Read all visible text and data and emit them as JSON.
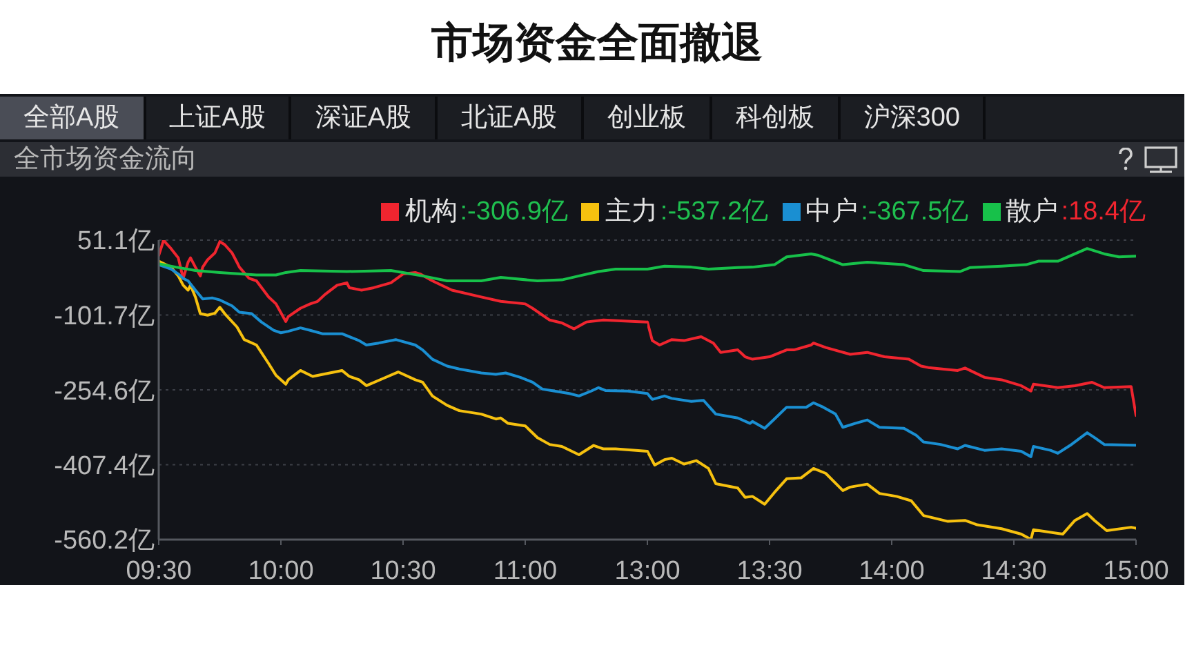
{
  "chart_data": [
    {
      "type": "line",
      "title": "市场资金全面撤退",
      "subtitle": "全市场资金流向",
      "annotations": [
        "全部A股",
        "上证A股",
        "深证A股",
        "北证A股",
        "创业板",
        "科创板",
        "沪深300"
      ],
      "xlim": [
        9.5,
        11.5
      ],
      "xticks": [
        {
          "value": 9.5,
          "label": "09:30"
        },
        {
          "value": 10,
          "label": "10:00"
        },
        {
          "value": 10.5,
          "label": "10:30"
        },
        {
          "value": 11,
          "label": "11:00"
        }
      ],
      "ylim": [
        -560.2,
        51.1
      ],
      "yticks": [
        {
          "value": 51.1,
          "label": "51.1亿"
        },
        {
          "value": -101.7,
          "label": "-101.7亿"
        },
        {
          "value": -254.6,
          "label": "-254.6亿"
        },
        {
          "value": -407.4,
          "label": "-407.4亿"
        },
        {
          "value": -560.2,
          "label": "-560.2亿"
        }
      ],
      "grid": "y",
      "legend": "top right",
      "series": [
        {
          "name": "机构:-306.9亿",
          "color": "#f0252f",
          "x": [
            9.5,
            9.52,
            9.53,
            9.55,
            9.58,
            9.6,
            9.62,
            9.63,
            9.65,
            9.67,
            9.68,
            9.7,
            9.73,
            9.75,
            9.77,
            9.8,
            9.82,
            9.83,
            9.87,
            9.9,
            9.95,
            9.98,
            10.02,
            10.03,
            10.08,
            10.12,
            10.15,
            10.18,
            10.23,
            10.27,
            10.28,
            10.33,
            10.38,
            10.45,
            10.5,
            10.55,
            10.57,
            10.62,
            10.7,
            10.82,
            10.9,
            11,
            11.03,
            11.1,
            11.15,
            11.2,
            11.25,
            11.32,
            11.45,
            11.5
          ],
          "values": [
            20,
            51,
            45,
            34,
            15,
            -27,
            6,
            15,
            -4,
            -22,
            -4,
            11,
            25,
            48,
            42,
            25,
            6,
            -4,
            -27,
            -32,
            -65,
            -79,
            -115,
            -105,
            -88,
            -79,
            -74,
            -60,
            -41,
            -36,
            -46,
            -51,
            -46,
            -36,
            -18,
            -15,
            -18,
            -32,
            -51,
            -65,
            -74,
            -79,
            -88,
            -112,
            -118,
            -130,
            -116,
            -112,
            -115,
            -116
          ]
        },
        {
          "name": "主力:-537.2亿",
          "color": "#f6c10f",
          "x": [
            9.5,
            9.55,
            9.58,
            9.6,
            9.62,
            9.63,
            9.65,
            9.67,
            9.7,
            9.73,
            9.75,
            9.77,
            9.82,
            9.85,
            9.9,
            9.95,
            9.98,
            10.02,
            10.03,
            10.08,
            10.13,
            10.2,
            10.25,
            10.28,
            10.32,
            10.35,
            10.42,
            10.48,
            10.55,
            10.58,
            10.62,
            10.68,
            10.73,
            10.82,
            10.88,
            10.9,
            10.93,
            11,
            11.05,
            11.1,
            11.15,
            11.22,
            11.28,
            11.32,
            11.37,
            11.5
          ],
          "values": [
            8,
            -4,
            -22,
            -41,
            -51,
            -41,
            -65,
            -99,
            -102,
            -98,
            -86,
            -99,
            -126,
            -152,
            -163,
            -201,
            -225,
            -243,
            -234,
            -215,
            -227,
            -220,
            -215,
            -227,
            -234,
            -246,
            -231,
            -218,
            -234,
            -239,
            -267,
            -286,
            -297,
            -304,
            -314,
            -312,
            -323,
            -328,
            -352,
            -366,
            -370,
            -387,
            -368,
            -375,
            -375,
            -380
          ]
        },
        {
          "name": "中户:-367.5亿",
          "color": "#1a8fd2",
          "x": [
            9.5,
            9.55,
            9.58,
            9.6,
            9.62,
            9.65,
            9.68,
            9.72,
            9.75,
            9.8,
            9.83,
            9.88,
            9.92,
            9.97,
            10,
            10.03,
            10.08,
            10.12,
            10.17,
            10.25,
            10.32,
            10.35,
            10.4,
            10.47,
            10.55,
            10.58,
            10.62,
            10.68,
            10.73,
            10.82,
            10.88,
            10.92,
            10.98,
            11.03,
            11.07,
            11.12,
            11.18,
            11.22,
            11.27,
            11.3,
            11.33,
            11.42,
            11.5
          ],
          "values": [
            1,
            -8,
            -18,
            -27,
            -32,
            -51,
            -69,
            -67,
            -71,
            -83,
            -96,
            -99,
            -116,
            -133,
            -138,
            -135,
            -128,
            -133,
            -140,
            -140,
            -154,
            -163,
            -159,
            -152,
            -163,
            -173,
            -192,
            -206,
            -212,
            -220,
            -223,
            -220,
            -229,
            -239,
            -253,
            -257,
            -262,
            -267,
            -257,
            -250,
            -256,
            -257,
            -262
          ]
        },
        {
          "name": "散户:18.4亿",
          "color": "#17c14a",
          "x": [
            9.5,
            9.57,
            9.65,
            9.75,
            9.9,
            9.98,
            10.02,
            10.08,
            10.27,
            10.45,
            10.5,
            10.58,
            10.68,
            10.82,
            10.9,
            11.05,
            11.15,
            11.22,
            11.3,
            11.37,
            11.5
          ],
          "values": [
            3,
            -4,
            -11,
            -15,
            -20,
            -20,
            -15,
            -11,
            -13,
            -11,
            -15,
            -22,
            -32,
            -32,
            -25,
            -32,
            -30,
            -22,
            -13,
            -8,
            -8
          ]
        }
      ]
    },
    {
      "type": "line",
      "xlim": [
        13,
        15
      ],
      "xticks": [
        {
          "value": 13,
          "label": "13:00"
        },
        {
          "value": 13.5,
          "label": "13:30"
        },
        {
          "value": 14,
          "label": "14:00"
        },
        {
          "value": 14.5,
          "label": "14:30"
        },
        {
          "value": 15,
          "label": "15:00"
        }
      ],
      "ylim": [
        -560.2,
        51.1
      ],
      "yticks": [
        51.1,
        -101.7,
        -254.6,
        -407.4,
        -560.2
      ],
      "tick_labels": "x",
      "grid": "y",
      "series": [
        {
          "color": "#f0252f",
          "x": [
            13,
            13.02,
            13.05,
            13.1,
            13.15,
            13.22,
            13.27,
            13.3,
            13.37,
            13.4,
            13.43,
            13.5,
            13.57,
            13.6,
            13.67,
            13.68,
            13.73,
            13.83,
            13.9,
            13.97,
            14.07,
            14.12,
            14.15,
            14.27,
            14.3,
            14.38,
            14.45,
            14.53,
            14.57,
            14.58,
            14.68,
            14.75,
            14.82,
            14.87,
            14.98,
            15
          ],
          "values": [
            -116,
            -154,
            -163,
            -152,
            -154,
            -146,
            -159,
            -178,
            -173,
            -187,
            -192,
            -187,
            -173,
            -173,
            -163,
            -159,
            -168,
            -182,
            -178,
            -187,
            -192,
            -206,
            -209,
            -215,
            -210,
            -229,
            -234,
            -246,
            -257,
            -243,
            -250,
            -246,
            -239,
            -250,
            -248,
            -306.9
          ]
        },
        {
          "color": "#f6c10f",
          "x": [
            13,
            13.03,
            13.07,
            13.1,
            13.15,
            13.2,
            13.25,
            13.28,
            13.37,
            13.4,
            13.43,
            13.48,
            13.52,
            13.57,
            13.63,
            13.68,
            13.73,
            13.8,
            13.83,
            13.9,
            13.95,
            14.02,
            14.08,
            14.13,
            14.23,
            14.3,
            14.35,
            14.45,
            14.53,
            14.57,
            14.58,
            14.7,
            14.75,
            14.8,
            14.83,
            14.88,
            14.98,
            15
          ],
          "values": [
            -380,
            -408,
            -397,
            -394,
            -406,
            -399,
            -415,
            -446,
            -455,
            -474,
            -472,
            -488,
            -464,
            -436,
            -434,
            -415,
            -425,
            -460,
            -453,
            -447,
            -466,
            -472,
            -481,
            -511,
            -523,
            -521,
            -530,
            -538,
            -549,
            -560,
            -540,
            -549,
            -521,
            -507,
            -521,
            -542,
            -535,
            -537.2
          ]
        },
        {
          "color": "#1a8fd2",
          "x": [
            13,
            13.02,
            13.07,
            13.1,
            13.18,
            13.23,
            13.28,
            13.37,
            13.42,
            13.43,
            13.48,
            13.52,
            13.57,
            13.65,
            13.68,
            13.72,
            13.77,
            13.8,
            13.85,
            13.9,
            13.95,
            14.05,
            14.1,
            14.13,
            14.2,
            14.27,
            14.3,
            14.38,
            14.45,
            14.53,
            14.57,
            14.58,
            14.65,
            14.68,
            14.73,
            14.8,
            14.83,
            14.87,
            15
          ],
          "values": [
            -262,
            -274,
            -267,
            -272,
            -278,
            -276,
            -304,
            -312,
            -323,
            -319,
            -333,
            -314,
            -290,
            -290,
            -281,
            -290,
            -304,
            -331,
            -323,
            -316,
            -331,
            -333,
            -347,
            -361,
            -366,
            -375,
            -368,
            -378,
            -375,
            -380,
            -391,
            -370,
            -378,
            -384,
            -368,
            -342,
            -352,
            -366,
            -367.5
          ]
        },
        {
          "color": "#17c14a",
          "x": [
            13,
            13.07,
            13.18,
            13.25,
            13.37,
            13.43,
            13.52,
            13.57,
            13.67,
            13.7,
            13.8,
            13.9,
            14.05,
            14.13,
            14.28,
            14.32,
            14.45,
            14.55,
            14.6,
            14.68,
            14.8,
            14.87,
            14.93,
            15
          ],
          "values": [
            -8,
            -2,
            -4,
            -8,
            -5,
            -4,
            1,
            17,
            23,
            20,
            1,
            6,
            1,
            -11,
            -13,
            -5,
            -2,
            1,
            8,
            8,
            34,
            23,
            17,
            18.4
          ]
        }
      ]
    }
  ]
}
